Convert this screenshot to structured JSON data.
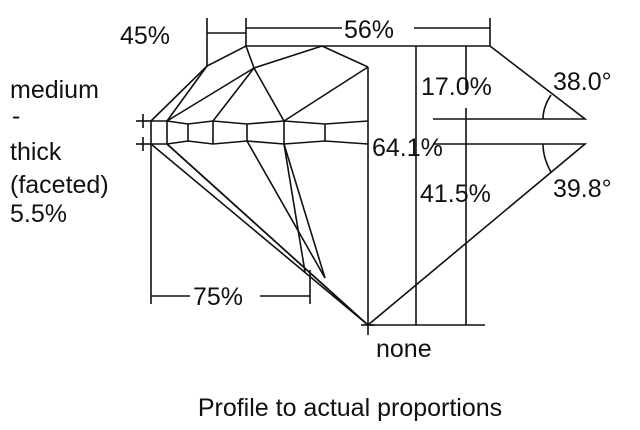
{
  "diagram": {
    "labels": {
      "crown_angle_percent": "45%",
      "table": "56%",
      "girdle_line1": "medium",
      "girdle_line2": "-",
      "girdle_line3": "thick",
      "girdle_line4": "(faceted)",
      "girdle_line5": "5.5%",
      "crown_height": "17.0%",
      "crown_angle": "38.0°",
      "total_depth": "64.1%",
      "pavilion_depth": "41.5%",
      "pavilion_angle": "39.8°",
      "lower_half": "75%",
      "culet": "none"
    },
    "caption": "Profile to actual proportions",
    "line_color": "#111111",
    "background": "#ffffff"
  }
}
